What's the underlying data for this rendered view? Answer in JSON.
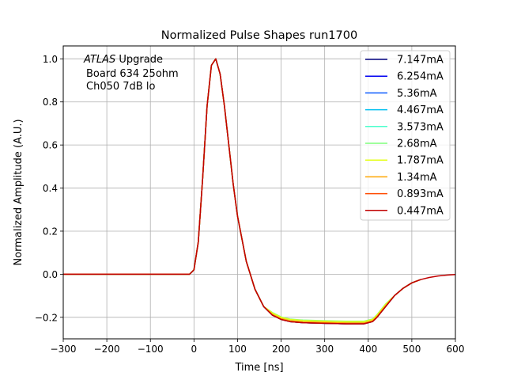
{
  "chart_data": {
    "type": "line",
    "title": "Normalized Pulse Shapes run1700",
    "xlabel": "Time [ns]",
    "ylabel": "Normalized Amplitude (A.U.)",
    "xlim": [
      -300,
      600
    ],
    "ylim": [
      -0.3,
      1.06
    ],
    "xticks": [
      -300,
      -200,
      -100,
      0,
      100,
      200,
      300,
      400,
      500,
      600
    ],
    "xtick_labels": [
      "−300",
      "−200",
      "−100",
      "0",
      "100",
      "200",
      "300",
      "400",
      "500",
      "600"
    ],
    "yticks": [
      -0.2,
      0.0,
      0.2,
      0.4,
      0.6,
      0.8,
      1.0
    ],
    "ytick_labels": [
      "−0.2",
      "0.0",
      "0.2",
      "0.4",
      "0.6",
      "0.8",
      "1.0"
    ],
    "grid": true,
    "legend_position": "top-right",
    "annotation": {
      "experiment": "ATLAS",
      "line1_rest": " Upgrade",
      "line2": "Board 634 25ohm",
      "line3": "Ch050 7dB lo"
    },
    "series": [
      {
        "name": "7.147mA",
        "color": "#00007f",
        "dy": 0.0,
        "x": [
          -300,
          -10,
          0,
          10,
          20,
          30,
          40,
          50,
          60,
          70,
          80,
          90,
          100,
          120,
          140,
          160,
          180,
          200,
          220,
          250,
          300,
          350,
          390,
          410,
          420,
          440,
          460,
          480,
          500,
          520
        ],
        "y": [
          0,
          0,
          0.02,
          0.15,
          0.45,
          0.78,
          0.97,
          1.0,
          0.93,
          0.78,
          0.6,
          0.42,
          0.27,
          0.06,
          -0.07,
          -0.15,
          -0.19,
          -0.21,
          -0.22,
          -0.225,
          -0.228,
          -0.23,
          -0.23,
          -0.22,
          -0.2,
          -0.15,
          -0.1,
          -0.065,
          -0.04,
          -0.025
        ]
      },
      {
        "name": "6.254mA",
        "color": "#0000f1",
        "dy": 0.0,
        "x": [
          -300,
          -10,
          0,
          10,
          20,
          30,
          40,
          50,
          60,
          70,
          80,
          90,
          100,
          120,
          140,
          160,
          180,
          200,
          220,
          250,
          300,
          350,
          390,
          410,
          420,
          440,
          460,
          480,
          500,
          520
        ],
        "y": [
          0,
          0,
          0.02,
          0.15,
          0.45,
          0.78,
          0.97,
          1.0,
          0.93,
          0.78,
          0.6,
          0.42,
          0.27,
          0.06,
          -0.07,
          -0.15,
          -0.19,
          -0.21,
          -0.22,
          -0.225,
          -0.228,
          -0.23,
          -0.23,
          -0.22,
          -0.2,
          -0.15,
          -0.1,
          -0.065,
          -0.04,
          -0.025
        ]
      },
      {
        "name": "5.36mA",
        "color": "#0d5cff",
        "dy": 0.0,
        "x": [
          -300,
          -10,
          0,
          10,
          20,
          30,
          40,
          50,
          60,
          70,
          80,
          90,
          100,
          120,
          140,
          160,
          180,
          200,
          220,
          250,
          300,
          350,
          390,
          410,
          420,
          440,
          460,
          480,
          500,
          520
        ],
        "y": [
          0,
          0,
          0.02,
          0.15,
          0.45,
          0.78,
          0.97,
          1.0,
          0.93,
          0.78,
          0.6,
          0.42,
          0.27,
          0.06,
          -0.07,
          -0.15,
          -0.19,
          -0.21,
          -0.22,
          -0.225,
          -0.228,
          -0.23,
          -0.23,
          -0.22,
          -0.2,
          -0.15,
          -0.1,
          -0.065,
          -0.04,
          -0.025
        ]
      },
      {
        "name": "4.467mA",
        "color": "#00c0f0",
        "dy": 0.003,
        "x": [
          -300,
          -10,
          0,
          10,
          20,
          30,
          40,
          50,
          60,
          70,
          80,
          90,
          100,
          120,
          140,
          160,
          180,
          200,
          220,
          250,
          300,
          350,
          390,
          410,
          420,
          440,
          460,
          480,
          500,
          520
        ],
        "y": [
          0,
          0,
          0.02,
          0.15,
          0.45,
          0.78,
          0.97,
          1.0,
          0.93,
          0.78,
          0.6,
          0.42,
          0.27,
          0.06,
          -0.07,
          -0.15,
          -0.19,
          -0.21,
          -0.22,
          -0.225,
          -0.228,
          -0.23,
          -0.23,
          -0.22,
          -0.2,
          -0.15,
          -0.1,
          -0.065,
          -0.04,
          -0.025
        ]
      },
      {
        "name": "3.573mA",
        "color": "#4cffcc",
        "dy": 0.005,
        "x": [
          -300,
          -10,
          0,
          10,
          20,
          30,
          40,
          50,
          60,
          70,
          80,
          90,
          100,
          120,
          140,
          160,
          180,
          200,
          220,
          250,
          300,
          350,
          390,
          410,
          420,
          440,
          460,
          480,
          500,
          520
        ],
        "y": [
          0,
          0,
          0.02,
          0.15,
          0.45,
          0.78,
          0.97,
          1.0,
          0.93,
          0.78,
          0.6,
          0.42,
          0.27,
          0.06,
          -0.07,
          -0.15,
          -0.19,
          -0.21,
          -0.22,
          -0.225,
          -0.228,
          -0.23,
          -0.23,
          -0.22,
          -0.2,
          -0.15,
          -0.1,
          -0.065,
          -0.04,
          -0.025
        ]
      },
      {
        "name": "2.68mA",
        "color": "#7fff7c",
        "dy": 0.012,
        "x": [
          -300,
          -10,
          0,
          10,
          20,
          30,
          40,
          50,
          60,
          70,
          80,
          90,
          100,
          120,
          140,
          160,
          180,
          200,
          220,
          250,
          300,
          350,
          390,
          410,
          420,
          440,
          460,
          480,
          500,
          520
        ],
        "y": [
          0,
          0,
          0.02,
          0.15,
          0.45,
          0.78,
          0.97,
          1.0,
          0.93,
          0.78,
          0.6,
          0.42,
          0.27,
          0.06,
          -0.07,
          -0.15,
          -0.19,
          -0.21,
          -0.22,
          -0.225,
          -0.228,
          -0.23,
          -0.23,
          -0.22,
          -0.2,
          -0.15,
          -0.1,
          -0.065,
          -0.04,
          -0.025
        ]
      },
      {
        "name": "1.787mA",
        "color": "#e5ff19",
        "dy": 0.01,
        "x": [
          -300,
          -10,
          0,
          10,
          20,
          30,
          40,
          50,
          60,
          70,
          80,
          90,
          100,
          120,
          140,
          160,
          180,
          200,
          220,
          250,
          300,
          350,
          390,
          410,
          420,
          440,
          460,
          480,
          500,
          520
        ],
        "y": [
          0,
          0,
          0.02,
          0.15,
          0.45,
          0.78,
          0.97,
          1.0,
          0.93,
          0.78,
          0.6,
          0.42,
          0.27,
          0.06,
          -0.07,
          -0.15,
          -0.19,
          -0.21,
          -0.22,
          -0.225,
          -0.228,
          -0.23,
          -0.23,
          -0.22,
          -0.2,
          -0.15,
          -0.1,
          -0.065,
          -0.04,
          -0.025
        ]
      },
      {
        "name": "1.34mA",
        "color": "#ffa600",
        "dy": 0.004,
        "x": [
          -300,
          -10,
          0,
          10,
          20,
          30,
          40,
          50,
          60,
          70,
          80,
          90,
          100,
          120,
          140,
          160,
          180,
          200,
          220,
          250,
          300,
          350,
          390,
          410,
          420,
          440,
          460,
          480,
          500,
          520
        ],
        "y": [
          0,
          0,
          0.02,
          0.15,
          0.45,
          0.78,
          0.97,
          1.0,
          0.93,
          0.78,
          0.6,
          0.42,
          0.27,
          0.06,
          -0.07,
          -0.15,
          -0.19,
          -0.21,
          -0.22,
          -0.225,
          -0.228,
          -0.23,
          -0.23,
          -0.22,
          -0.2,
          -0.15,
          -0.1,
          -0.065,
          -0.04,
          -0.025
        ]
      },
      {
        "name": "0.893mA",
        "color": "#ff4a00",
        "dy": 0.0,
        "x": [
          -300,
          -10,
          0,
          10,
          20,
          30,
          40,
          50,
          60,
          70,
          80,
          90,
          100,
          120,
          140,
          160,
          180,
          200,
          220,
          250,
          300,
          350,
          390,
          410,
          420,
          440,
          460,
          480,
          500,
          520
        ],
        "y": [
          0,
          0,
          0.02,
          0.15,
          0.45,
          0.78,
          0.97,
          1.0,
          0.93,
          0.78,
          0.6,
          0.42,
          0.27,
          0.06,
          -0.07,
          -0.15,
          -0.19,
          -0.21,
          -0.22,
          -0.225,
          -0.228,
          -0.23,
          -0.23,
          -0.22,
          -0.2,
          -0.15,
          -0.1,
          -0.065,
          -0.04,
          -0.025
        ]
      },
      {
        "name": "0.447mA",
        "color": "#c00000",
        "dy": 0.0,
        "x": [
          -300,
          -10,
          0,
          10,
          20,
          30,
          40,
          50,
          60,
          70,
          80,
          90,
          100,
          120,
          140,
          160,
          180,
          200,
          220,
          250,
          300,
          350,
          390,
          410,
          420,
          440,
          460,
          480,
          500,
          520,
          540,
          560,
          580,
          600
        ],
        "y": [
          0,
          0,
          0.02,
          0.15,
          0.45,
          0.78,
          0.97,
          1.0,
          0.93,
          0.78,
          0.6,
          0.42,
          0.27,
          0.06,
          -0.07,
          -0.15,
          -0.19,
          -0.21,
          -0.22,
          -0.225,
          -0.228,
          -0.23,
          -0.23,
          -0.22,
          -0.2,
          -0.15,
          -0.1,
          -0.065,
          -0.04,
          -0.025,
          -0.015,
          -0.008,
          -0.004,
          -0.001
        ]
      }
    ]
  }
}
